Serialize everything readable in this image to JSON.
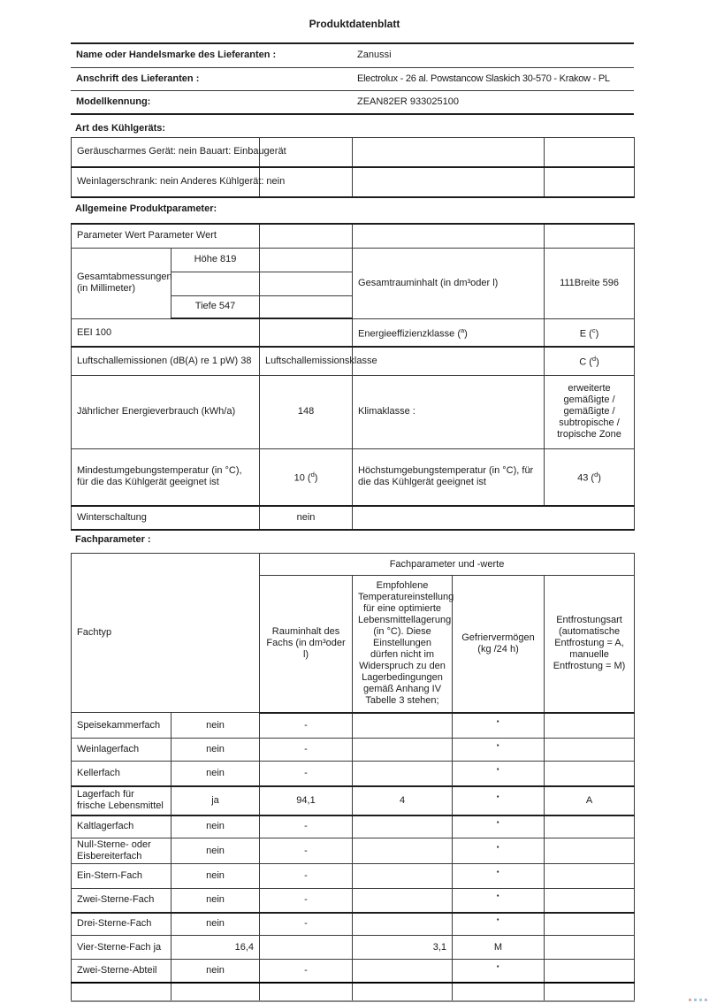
{
  "page": {
    "title": "Produktdatenblatt"
  },
  "supplier": {
    "rows": [
      {
        "label": "Name oder Handelsmarke des Lieferanten :",
        "value": "Zanussi"
      },
      {
        "label": "Anschrift des Lieferanten :",
        "value": "Electrolux - 26 al. Powstancow Slaskich 30-570 - Krakow - PL"
      },
      {
        "label": "Modellkennung:",
        "value": "ZEAN82ER 933025100"
      }
    ]
  },
  "type_section": {
    "heading": "Art des Kühlgeräts:",
    "row1": "Geräuscharmes Gerät: nein Bauart: Einbaugerät",
    "row2": "Weinlagerschrank: nein Anderes Kühlgerät: nein"
  },
  "general": {
    "heading": "Allgemeine Produktparameter:",
    "param_header": "Parameter Wert Parameter Wert",
    "dimensions_label": "Gesamtabmessungen (in Millimeter)",
    "dim_height": "Höhe 819",
    "dim_depth": "Tiefe 547",
    "volume_label": "Gesamtrauminhalt (in dm³oder l)",
    "volume_value": "111Breite 596",
    "eei_label": "EEI 100",
    "energy_class_label": {
      "prefix": "Energieeffizienzklasse (",
      "fn": "a",
      "suffix": ")"
    },
    "energy_class_value": {
      "prefix": "E (",
      "fn": "c",
      "suffix": ")"
    },
    "noise_label": "Luftschallemissionen (dB(A) re 1 pW) 38",
    "noise_class_label": "Luftschallemissionsklasse",
    "noise_class_value": {
      "prefix": "C (",
      "fn": "d",
      "suffix": ")"
    },
    "annual_energy_label": "Jährlicher Energieverbrauch (kWh/a)",
    "annual_energy_value": "148",
    "climate_label": "Klimaklasse :",
    "climate_value": "erweiterte gemäßigte / gemäßigte / subtropische / tropische Zone",
    "min_temp_label": "Mindestumgebungstemperatur (in °C), für die das Kühlgerät geeignet ist",
    "min_temp_value": {
      "prefix": "10 (",
      "fn": "d",
      "suffix": ")"
    },
    "max_temp_label": "Höchstumgebungstemperatur (in °C), für die das Kühlgerät geeignet ist",
    "max_temp_value": {
      "prefix": "43 (",
      "fn": "d",
      "suffix": ")"
    },
    "winter_label": "Winterschaltung",
    "winter_value": "nein"
  },
  "compartments": {
    "heading": "Fachparameter :",
    "fachtyp_label": "Fachtyp",
    "group_header": "Fachparameter und -werte",
    "col_headers": [
      "Rauminhalt des Fachs (in dm³oder l)",
      "Empfohlene Temperatureinstellung für eine optimierte Lebensmittellagerung (in °C). Diese Einstellungen dürfen nicht im Widerspruch zu den Lagerbedingungen gemäß Anhang IV Tabelle 3 stehen;",
      "Gefriervermögen (kg /24 h)",
      "Entfrostungsart (automatische Entfrostung = A, manuelle Entfrostung = M)"
    ],
    "rows": [
      {
        "label": "Speisekammerfach",
        "cells": [
          "nein",
          "-",
          "",
          "·",
          ""
        ]
      },
      {
        "label": "Weinlagerfach",
        "cells": [
          "nein",
          "-",
          "",
          "·",
          ""
        ]
      },
      {
        "label": "Kellerfach",
        "cells": [
          "nein",
          "-",
          "",
          "·",
          ""
        ]
      },
      {
        "label": "Lagerfach für frische Lebensmittel",
        "cells": [
          "ja",
          "94,1",
          "4",
          "·",
          "A"
        ]
      },
      {
        "label": "Kaltlagerfach",
        "cells": [
          "nein",
          "-",
          "",
          "·",
          ""
        ]
      },
      {
        "label": "Null-Sterne- oder Eisbereiterfach",
        "cells": [
          "nein",
          "-",
          "",
          "·",
          ""
        ]
      },
      {
        "label": "Ein-Stern-Fach",
        "cells": [
          "nein",
          "-",
          "",
          "·",
          ""
        ]
      },
      {
        "label": "Zwei-Sterne-Fach",
        "cells": [
          "nein",
          "-",
          "",
          "·",
          ""
        ]
      },
      {
        "label": "Drei-Sterne-Fach",
        "cells": [
          "nein",
          "-",
          "",
          "·",
          ""
        ]
      },
      {
        "label": "Vier-Sterne-Fach ja",
        "cells": [
          "16,4",
          "",
          "3,1",
          "M",
          ""
        ],
        "numeric": true
      },
      {
        "label": "Zwei-Sterne-Abteil",
        "cells": [
          "nein",
          "-",
          "",
          "·",
          ""
        ]
      },
      {
        "label": "",
        "cells": [
          "",
          "",
          "",
          "",
          ""
        ]
      }
    ]
  }
}
